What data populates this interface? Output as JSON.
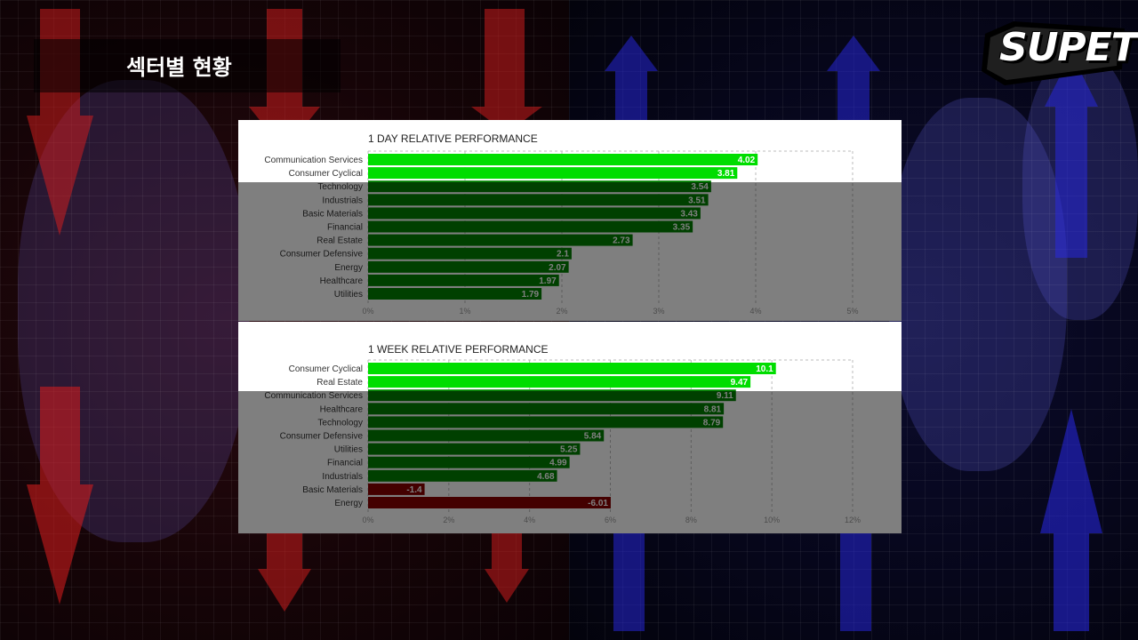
{
  "header": {
    "title": "섹터별 현황"
  },
  "logo": {
    "text": "SUPETV"
  },
  "colors": {
    "bar_top": "#00dd00",
    "bar_normal": "#008000",
    "bar_negative": "#880000",
    "overlay": "rgba(0,0,0,0.5)"
  },
  "chart_data": [
    {
      "type": "bar",
      "orientation": "horizontal",
      "title": "1 DAY RELATIVE PERFORMANCE",
      "categories": [
        "Communication Services",
        "Consumer Cyclical",
        "Technology",
        "Industrials",
        "Basic Materials",
        "Financial",
        "Real Estate",
        "Consumer Defensive",
        "Energy",
        "Healthcare",
        "Utilities"
      ],
      "values": [
        4.02,
        3.81,
        3.54,
        3.51,
        3.43,
        3.35,
        2.73,
        2.1,
        2.07,
        1.97,
        1.79
      ],
      "data_labels": [
        "4.02",
        "3.81",
        "3.54",
        "3.51",
        "3.43",
        "3.35",
        "2.73",
        "2.1",
        "2.07",
        "1.97",
        "1.79"
      ],
      "xlim": [
        0,
        5
      ],
      "xticks": [
        "0%",
        "1%",
        "2%",
        "3%",
        "4%",
        "5%"
      ],
      "grid": true,
      "highlighted_count": 2
    },
    {
      "type": "bar",
      "orientation": "horizontal",
      "title": "1 WEEK RELATIVE PERFORMANCE",
      "categories": [
        "Consumer Cyclical",
        "Real Estate",
        "Communication Services",
        "Healthcare",
        "Technology",
        "Consumer Defensive",
        "Utilities",
        "Financial",
        "Industrials",
        "Basic Materials",
        "Energy"
      ],
      "values": [
        10.1,
        9.47,
        9.11,
        8.81,
        8.79,
        5.84,
        5.25,
        4.99,
        4.68,
        -1.4,
        -6.01
      ],
      "data_labels": [
        "10.1",
        "9.47",
        "9.11",
        "8.81",
        "8.79",
        "5.84",
        "5.25",
        "4.99",
        "4.68",
        "-1.4",
        "-6.01"
      ],
      "xlim": [
        0,
        12
      ],
      "xticks": [
        "0%",
        "2%",
        "4%",
        "6%",
        "8%",
        "10%",
        "12%"
      ],
      "grid": true,
      "highlighted_count": 2,
      "negative_bars_drawn_as_magnitude": true
    }
  ]
}
